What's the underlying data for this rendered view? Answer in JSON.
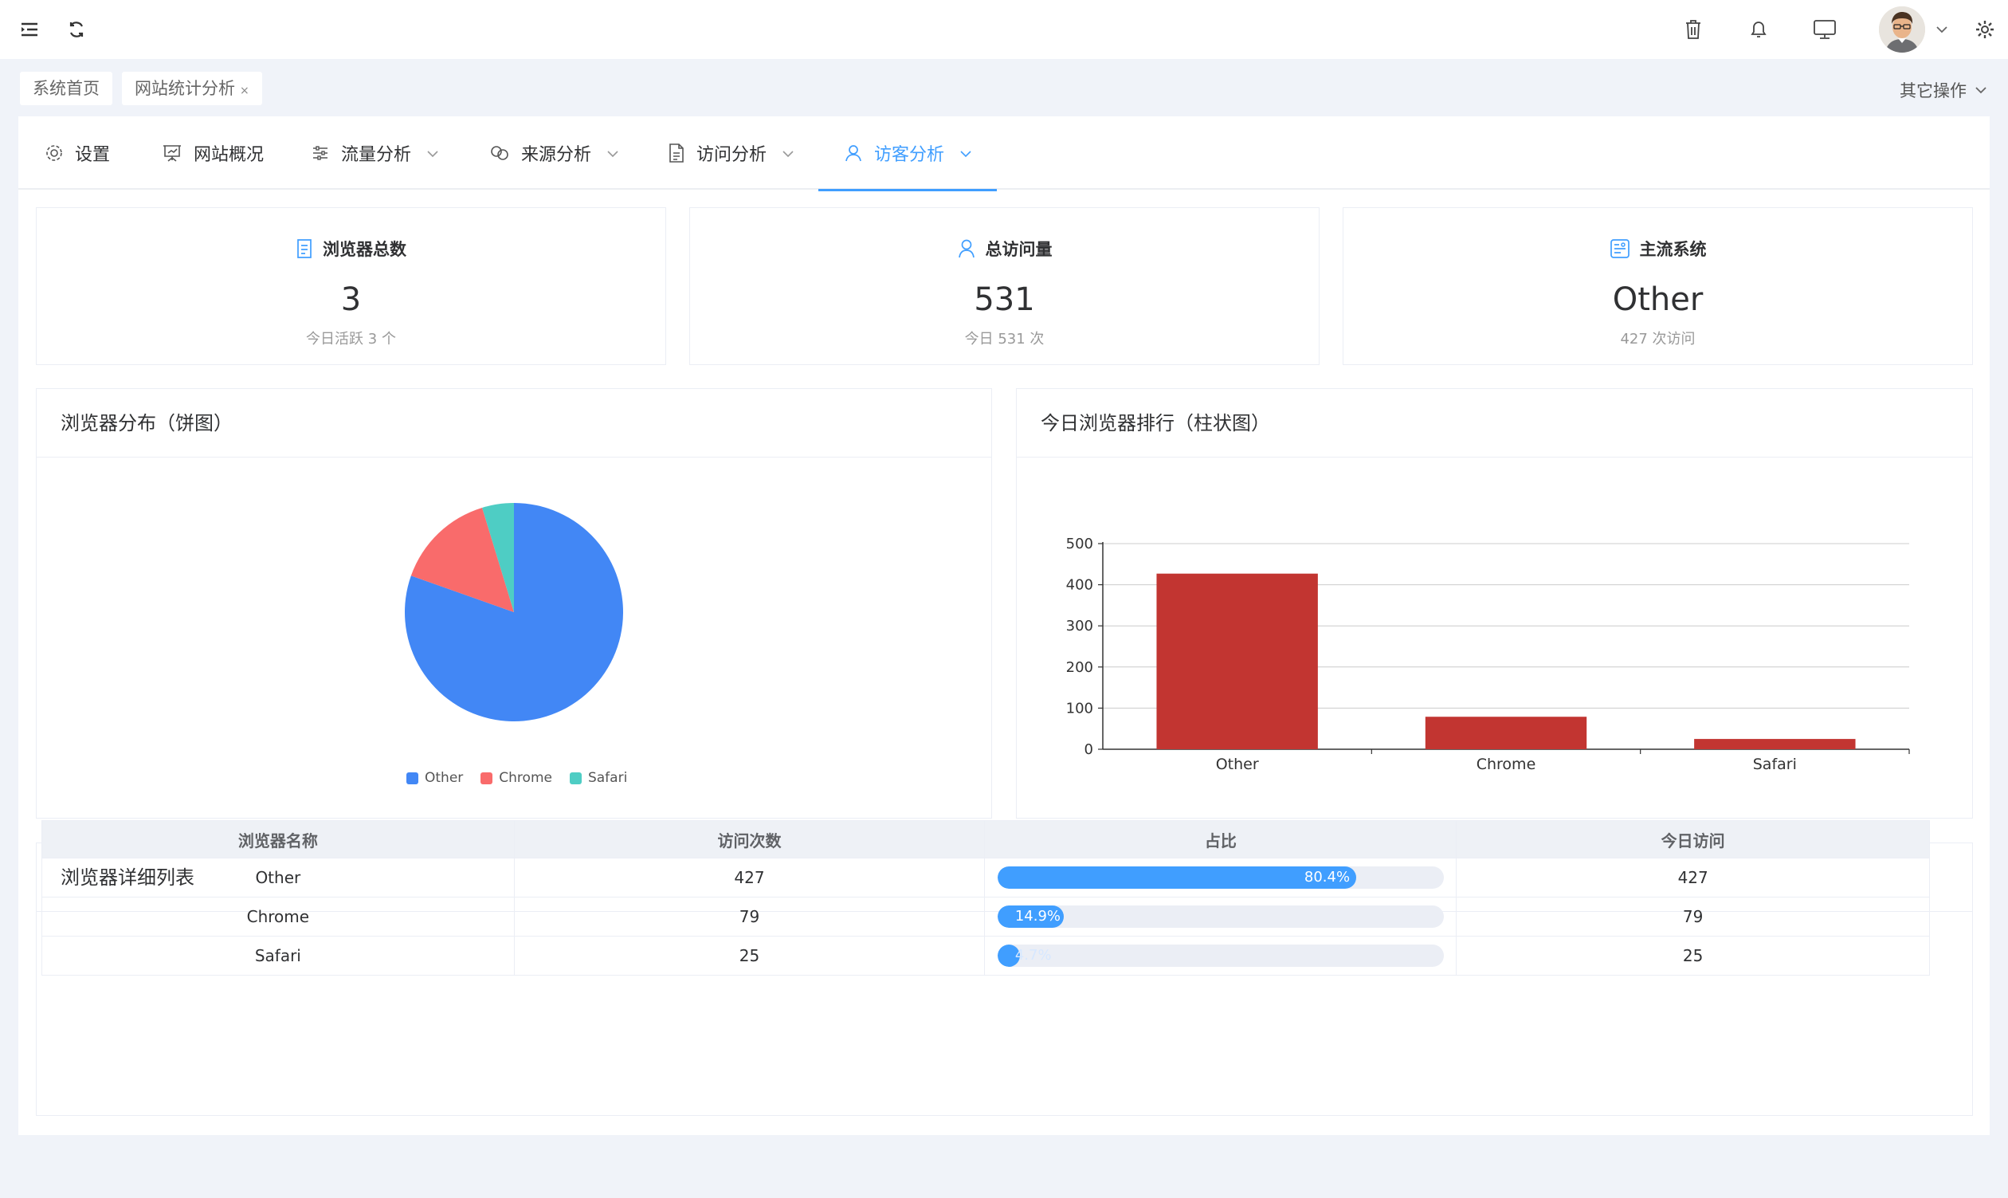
{
  "tags": [
    {
      "label": "系统首页"
    },
    {
      "label": "网站统计分析",
      "close": "×"
    }
  ],
  "other_ops": "其它操作",
  "tabs": [
    {
      "label": "设置",
      "icon": "gear-icon"
    },
    {
      "label": "网站概况",
      "icon": "presentation-icon"
    },
    {
      "label": "流量分析",
      "icon": "sliders-icon",
      "dropdown": true
    },
    {
      "label": "来源分析",
      "icon": "link-icon",
      "dropdown": true
    },
    {
      "label": "访问分析",
      "icon": "document-icon",
      "dropdown": true
    },
    {
      "label": "访客分析",
      "icon": "user-icon",
      "dropdown": true,
      "active": true
    }
  ],
  "stats": [
    {
      "title": "浏览器总数",
      "value": "3",
      "sub": "今日活跃 3 个",
      "icon": "document-icon"
    },
    {
      "title": "总访问量",
      "value": "531",
      "sub": "今日 531 次",
      "icon": "user-icon"
    },
    {
      "title": "主流系统",
      "value": "Other",
      "sub": "427 次访问",
      "icon": "dashboard-icon"
    }
  ],
  "pie_panel": {
    "title": "浏览器分布（饼图）"
  },
  "bar_panel": {
    "title": "今日浏览器排行（柱状图）"
  },
  "table_panel": {
    "title": "浏览器详细列表"
  },
  "table": {
    "headers": [
      "浏览器名称",
      "访问次数",
      "占比",
      "今日访问"
    ],
    "rows": [
      {
        "name": "Other",
        "visits": "427",
        "share": "80.4%",
        "share_value": 80.4,
        "today": "427"
      },
      {
        "name": "Chrome",
        "visits": "79",
        "share": "14.9%",
        "share_value": 14.9,
        "today": "79"
      },
      {
        "name": "Safari",
        "visits": "25",
        "share": "4.7%",
        "share_value": 4.7,
        "today": "25"
      }
    ]
  },
  "colors": {
    "accent": "#409eff",
    "pie": [
      "#4287f5",
      "#f96b6b",
      "#4ecdc4"
    ],
    "bar": "#c23531"
  },
  "chart_data": [
    {
      "type": "pie",
      "categories": [
        "Other",
        "Chrome",
        "Safari"
      ],
      "values": [
        427,
        79,
        25
      ],
      "legend": "bottom"
    },
    {
      "type": "bar",
      "categories": [
        "Other",
        "Chrome",
        "Safari"
      ],
      "values": [
        427,
        79,
        25
      ],
      "ylim": [
        0,
        500
      ],
      "yticks": [
        "0",
        "100",
        "200",
        "300",
        "400",
        "500"
      ],
      "grid": true
    }
  ]
}
